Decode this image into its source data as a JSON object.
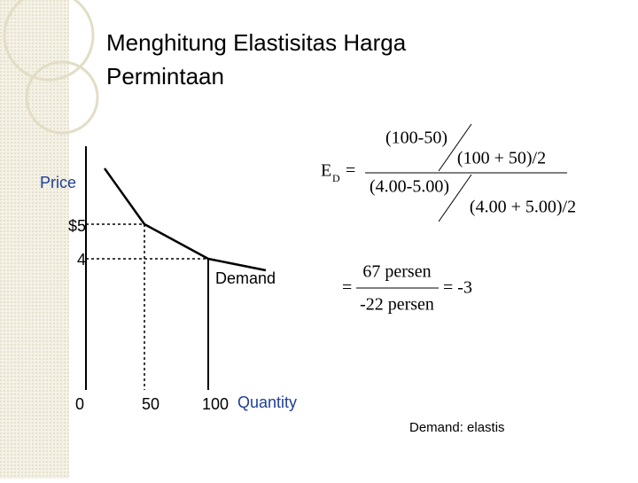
{
  "title": {
    "lines": [
      "Menghitung Elastisitas Harga",
      "Permintaan"
    ]
  },
  "graph": {
    "y_label": "Price",
    "x_label": "Quantity",
    "y_ticks": [
      "$5",
      "4"
    ],
    "x_ticks": [
      "0",
      "50",
      "100"
    ],
    "curve_label": "Demand"
  },
  "formula": {
    "symbol": "E",
    "subscript": "D",
    "equals": "=",
    "numerator": "(100-50)",
    "numerator_divisor": "(100 + 50)/2",
    "denominator": "(4.00-5.00)",
    "denominator_divisor": "(4.00 + 5.00)/2",
    "result_equals": "=",
    "result_numerator": "67 persen",
    "result_denominator": "-22 persen",
    "result": "= -3"
  },
  "conclusion": "Demand: elastis"
}
